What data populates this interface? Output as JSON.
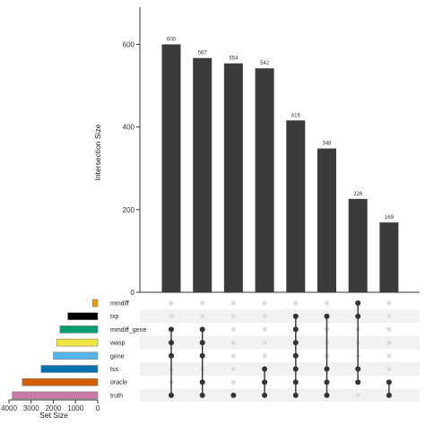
{
  "chart_data": {
    "type": "bar",
    "intersections": [
      {
        "size": 600,
        "sets": [
          "gene",
          "wasp",
          "mmdiff_gene",
          "truth"
        ]
      },
      {
        "size": 567,
        "sets": [
          "gene",
          "wasp",
          "mmdiff_gene",
          "oracle",
          "truth"
        ]
      },
      {
        "size": 554,
        "sets": [
          "truth"
        ]
      },
      {
        "size": 542,
        "sets": [
          "tss",
          "oracle",
          "truth"
        ]
      },
      {
        "size": 416,
        "sets": [
          "txp",
          "mmdiff_gene",
          "wasp",
          "gene",
          "tss",
          "oracle",
          "truth"
        ]
      },
      {
        "size": 348,
        "sets": [
          "txp",
          "tss",
          "oracle",
          "truth"
        ]
      },
      {
        "size": 226,
        "sets": [
          "mmdiff",
          "txp",
          "tss",
          "oracle"
        ]
      },
      {
        "size": 169,
        "sets": [
          "oracle",
          "truth"
        ]
      }
    ],
    "sets": [
      {
        "name": "mmdiff",
        "size": 230,
        "color": "#E69F00"
      },
      {
        "name": "txp",
        "size": 1350,
        "color": "#000000"
      },
      {
        "name": "mmdiff_gene",
        "size": 1700,
        "color": "#009E73"
      },
      {
        "name": "wasp",
        "size": 1850,
        "color": "#F0E442"
      },
      {
        "name": "gene",
        "size": 2000,
        "color": "#56B4E9"
      },
      {
        "name": "tss",
        "size": 2550,
        "color": "#0072B2"
      },
      {
        "name": "oracle",
        "size": 3400,
        "color": "#D55E00"
      },
      {
        "name": "truth",
        "size": 3850,
        "color": "#CC79A7"
      }
    ],
    "ylabel": "Intersection Size",
    "xlabel_sets": "Set Size",
    "ylim": [
      0,
      690
    ],
    "yticks": [
      0,
      200,
      400,
      600
    ],
    "set_size_lim": [
      0,
      4000
    ],
    "set_size_ticks": [
      4000,
      3000,
      2000,
      1000,
      0
    ],
    "bar_color": "#3b3b3b",
    "dot_on_color": "#333333",
    "dot_off_color": "#dedede"
  }
}
